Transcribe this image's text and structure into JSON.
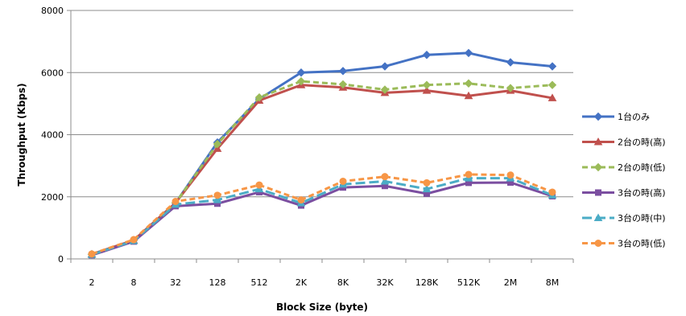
{
  "chart_data": {
    "type": "line",
    "xlabel": "Block Size (byte)",
    "ylabel": "Throughput (Kbps)",
    "ylim": [
      0,
      8000
    ],
    "yticks": [
      0,
      2000,
      4000,
      6000,
      8000
    ],
    "grid": "horizontal",
    "legend_position": "right",
    "categories": [
      "2",
      "8",
      "32",
      "128",
      "512",
      "2K",
      "8K",
      "32K",
      "128K",
      "512K",
      "2M",
      "8M"
    ],
    "series": [
      {
        "name": "1台のみ",
        "color": "#4472C4",
        "dash": "solid",
        "marker": "diamond",
        "values": [
          150,
          600,
          1800,
          3750,
          5150,
          6000,
          6050,
          6200,
          6570,
          6630,
          6330,
          6200
        ]
      },
      {
        "name": "2台の時(高)",
        "color": "#C0504D",
        "dash": "solid",
        "marker": "triangle",
        "values": [
          150,
          600,
          1800,
          3550,
          5100,
          5600,
          5520,
          5350,
          5420,
          5250,
          5420,
          5180
        ]
      },
      {
        "name": "2台の時(低)",
        "color": "#9BBB59",
        "dash": "dashed",
        "marker": "diamond",
        "values": [
          150,
          600,
          1800,
          3700,
          5200,
          5720,
          5620,
          5450,
          5600,
          5650,
          5500,
          5600
        ]
      },
      {
        "name": "3台の時(高)",
        "color": "#7B4EA0",
        "dash": "solid",
        "marker": "square",
        "values": [
          120,
          560,
          1700,
          1780,
          2150,
          1720,
          2300,
          2350,
          2100,
          2450,
          2460,
          2020
        ]
      },
      {
        "name": "3台の時(中)",
        "color": "#4BACC6",
        "dash": "longdash",
        "marker": "triangle",
        "values": [
          140,
          580,
          1750,
          1900,
          2250,
          1800,
          2400,
          2500,
          2250,
          2600,
          2600,
          2050
        ]
      },
      {
        "name": "3台の時(低)",
        "color": "#F79646",
        "dash": "dashed",
        "marker": "circle",
        "values": [
          160,
          620,
          1850,
          2050,
          2380,
          1900,
          2500,
          2650,
          2450,
          2720,
          2700,
          2150
        ]
      }
    ]
  }
}
